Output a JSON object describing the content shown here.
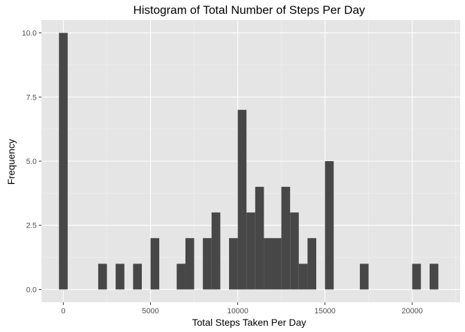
{
  "chart_data": {
    "type": "bar",
    "title": "Histogram of Total Number of Steps Per Day",
    "xlabel": "Total Steps Taken Per Day",
    "ylabel": "Frequency",
    "binwidth": 500,
    "xlim": [
      -1250,
      22750
    ],
    "ylim": [
      -0.5,
      10.5
    ],
    "x_ticks": [
      0,
      5000,
      10000,
      15000,
      20000
    ],
    "x_tick_labels": [
      "0",
      "5000",
      "10000",
      "15000",
      "20000"
    ],
    "y_ticks": [
      0,
      2.5,
      5,
      7.5,
      10
    ],
    "y_tick_labels": [
      "0.0",
      "2.5",
      "5.0",
      "7.5",
      "10.0"
    ],
    "grid": true,
    "bins": [
      {
        "x0": -250,
        "x1": 250,
        "count": 10
      },
      {
        "x0": 2000,
        "x1": 2500,
        "count": 1
      },
      {
        "x0": 3000,
        "x1": 3500,
        "count": 1
      },
      {
        "x0": 4000,
        "x1": 4500,
        "count": 1
      },
      {
        "x0": 5000,
        "x1": 5500,
        "count": 2
      },
      {
        "x0": 6500,
        "x1": 7000,
        "count": 1
      },
      {
        "x0": 7000,
        "x1": 7500,
        "count": 2
      },
      {
        "x0": 8000,
        "x1": 8500,
        "count": 2
      },
      {
        "x0": 8500,
        "x1": 9000,
        "count": 3
      },
      {
        "x0": 9500,
        "x1": 10000,
        "count": 2
      },
      {
        "x0": 10000,
        "x1": 10500,
        "count": 7
      },
      {
        "x0": 10500,
        "x1": 11000,
        "count": 3
      },
      {
        "x0": 11000,
        "x1": 11500,
        "count": 4
      },
      {
        "x0": 11500,
        "x1": 12000,
        "count": 2
      },
      {
        "x0": 12000,
        "x1": 12500,
        "count": 2
      },
      {
        "x0": 12500,
        "x1": 13000,
        "count": 4
      },
      {
        "x0": 13000,
        "x1": 13500,
        "count": 3
      },
      {
        "x0": 13500,
        "x1": 14000,
        "count": 1
      },
      {
        "x0": 14000,
        "x1": 14500,
        "count": 2
      },
      {
        "x0": 15000,
        "x1": 15500,
        "count": 5
      },
      {
        "x0": 17000,
        "x1": 17500,
        "count": 1
      },
      {
        "x0": 20000,
        "x1": 20500,
        "count": 1
      },
      {
        "x0": 21000,
        "x1": 21500,
        "count": 1
      }
    ],
    "colors": {
      "panel": "#e5e5e5",
      "grid_major": "#ffffff",
      "grid_minor": "#f2f2f2",
      "bar": "#474747",
      "tick": "#333333",
      "tick_text": "#4d4d4d",
      "text": "#000000"
    }
  }
}
